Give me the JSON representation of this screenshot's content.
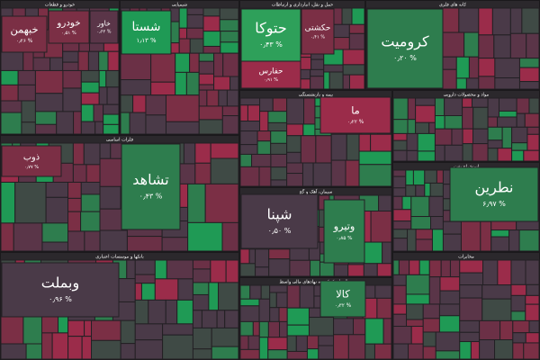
{
  "chart_data": {
    "type": "treemap",
    "groups": [
      "خودرو و قطعات",
      "شیمیایی",
      "حمل و نقل، انبارداری و ارتباطات",
      "کانه های فلزی",
      "بیمه و بازنشستگی",
      "مواد و محصولات دارویی",
      "فلزات اساسی",
      "سیمان، آهک و گچ",
      "استخراج نفت",
      "بانکها و موسسات اعتباری",
      "فعالیتهای کمکی به نهادهای مالی واسط",
      "مخابرات"
    ],
    "tiles": [
      {
        "name": "خبهمن",
        "value": 0.26,
        "value_label": "۰٫۲۶ %",
        "color": "#7b2f45"
      },
      {
        "name": "خودرو",
        "value": 0.51,
        "value_label": "۰٫۵۱ %",
        "color": "#7b2f45"
      },
      {
        "name": "خاور",
        "value": 0.62,
        "value_label": "۰٫۶۲ %",
        "color": "#5a3548"
      },
      {
        "name": "شستا",
        "value": 1.13,
        "value_label": "۱٫۱۳ %",
        "color": "#1f9a55"
      },
      {
        "name": "حتوکا",
        "value": 0.43,
        "value_label": "۰٫۴۳ %",
        "color": "#2ea05a"
      },
      {
        "name": "حکشتی",
        "value": 0.41,
        "value_label": "۰٫۴۱ %",
        "color": "#7b2f45"
      },
      {
        "name": "کرومیت",
        "value": 0.2,
        "value_label": "۰٫۲۰ %",
        "color": "#2e7d4e"
      },
      {
        "name": "حفارس",
        "value": 0.91,
        "value_label": "۰٫۹۱ %",
        "color": "#9b2c4a"
      },
      {
        "name": "ما",
        "value": 0.22,
        "value_label": "۰٫۲۲ %",
        "color": "#9b2c4a"
      },
      {
        "name": "ذوب",
        "value": 0.77,
        "value_label": "۰٫۷۷ %",
        "color": "#7b2f45"
      },
      {
        "name": "تشاهد",
        "value": 0.43,
        "value_label": "۰٫۴۳ %",
        "color": "#2e7d4e"
      },
      {
        "name": "نطرین",
        "value": 6.97,
        "value_label": "۶٫۹۷ %",
        "color": "#2e7d4e"
      },
      {
        "name": "وبملت",
        "value": 0.96,
        "value_label": "۰٫۹۶ %",
        "color": "#4a3a48"
      },
      {
        "name": "وتیرو",
        "value": 0.85,
        "value_label": "۰٫۸۵ %",
        "color": "#2e7d4e"
      },
      {
        "name": "کالا",
        "value": 0.32,
        "value_label": "۰٫۳۲ %",
        "color": "#2e7d4e"
      },
      {
        "name": "شپنا",
        "value": 0.5,
        "value_label": "۰٫۵۰ %",
        "color": "#4a3a48"
      }
    ]
  }
}
